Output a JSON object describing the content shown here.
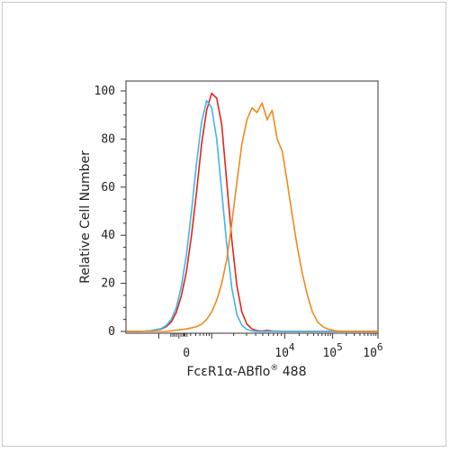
{
  "chart_data": {
    "type": "line",
    "xlabel": "FcεR1α-ABflo",
    "xlabel_sup": "®",
    "xlabel_suffix": " 488",
    "ylabel": "Relative Cell Number",
    "ylim": [
      0,
      100
    ],
    "x_scale": "biexponential",
    "x_tick_labels": [
      {
        "base": "0",
        "exp": ""
      },
      {
        "base": "10",
        "exp": "4"
      },
      {
        "base": "10",
        "exp": "5"
      },
      {
        "base": "10",
        "exp": "6"
      }
    ],
    "y_ticks": [
      0,
      20,
      40,
      60,
      80,
      100
    ],
    "grid": false,
    "legend": "none",
    "series": [
      {
        "color": "#e0251c",
        "x": [
          0.0,
          0.06,
          0.1,
          0.14,
          0.16,
          0.18,
          0.2,
          0.22,
          0.24,
          0.26,
          0.28,
          0.3,
          0.32,
          0.34,
          0.36,
          0.38,
          0.4,
          0.42,
          0.44,
          0.46,
          0.48,
          0.5,
          0.52,
          0.54,
          0.56,
          0.58,
          0.62,
          0.7,
          0.85,
          1.0
        ],
        "y": [
          0,
          0,
          0.3,
          1,
          2,
          4,
          8,
          15,
          25,
          40,
          58,
          78,
          92,
          99,
          97,
          86,
          62,
          38,
          19,
          8,
          3,
          1,
          0.3,
          0.2,
          0.4,
          0.2,
          0,
          0,
          0,
          0
        ]
      },
      {
        "color": "#41b6e6",
        "x": [
          0.0,
          0.06,
          0.1,
          0.14,
          0.16,
          0.18,
          0.2,
          0.22,
          0.24,
          0.26,
          0.28,
          0.3,
          0.32,
          0.34,
          0.36,
          0.38,
          0.4,
          0.42,
          0.44,
          0.46,
          0.48,
          0.5,
          0.52,
          0.54,
          0.58,
          0.62,
          0.7,
          0.85,
          1.0
        ],
        "y": [
          0,
          0,
          0.3,
          1.2,
          2.5,
          5,
          10,
          19,
          32,
          50,
          70,
          87,
          96,
          93,
          80,
          58,
          36,
          18,
          7,
          2.5,
          0.8,
          0.2,
          0,
          0,
          0,
          0,
          0,
          0,
          0
        ]
      },
      {
        "color": "#f08a1e",
        "x": [
          0.0,
          0.16,
          0.2,
          0.24,
          0.28,
          0.3,
          0.32,
          0.34,
          0.36,
          0.38,
          0.4,
          0.42,
          0.44,
          0.46,
          0.48,
          0.5,
          0.52,
          0.54,
          0.56,
          0.58,
          0.6,
          0.62,
          0.64,
          0.66,
          0.68,
          0.7,
          0.72,
          0.74,
          0.76,
          0.78,
          0.8,
          0.82,
          0.84,
          0.86,
          0.88,
          0.9,
          0.92,
          0.94,
          0.96,
          1.0
        ],
        "y": [
          0,
          0,
          0.5,
          1,
          2,
          3,
          5,
          8,
          13,
          20,
          30,
          45,
          62,
          78,
          88,
          93,
          91,
          95,
          88,
          92,
          80,
          75,
          62,
          48,
          35,
          24,
          15,
          8,
          4,
          2,
          1,
          0.5,
          0.2,
          0.1,
          0,
          0,
          0,
          0,
          0,
          0
        ]
      }
    ]
  }
}
